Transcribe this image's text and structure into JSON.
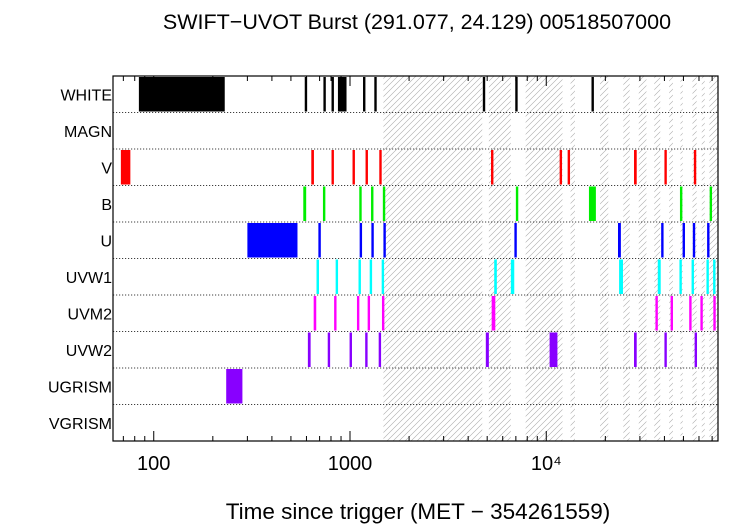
{
  "chart_data": {
    "type": "timeline",
    "title": "SWIFT−UVOT Burst (291.077, 24.129) 00518507000",
    "xlabel": "Time since trigger (MET − 354261559)",
    "xscale": "log",
    "xlim": [
      62,
      75000
    ],
    "x_tick_labels": [
      "100",
      "1000",
      "10⁴"
    ],
    "x_ticks": [
      100,
      1000,
      10000
    ],
    "rows": [
      "WHITE",
      "MAGN",
      "V",
      "B",
      "U",
      "UVW1",
      "UVM2",
      "UVW2",
      "UGRISM",
      "VGRISM"
    ],
    "colors": {
      "WHITE": "#000000",
      "MAGN": "#000000",
      "V": "#ff0000",
      "B": "#00ee00",
      "U": "#0000ff",
      "UVW1": "#00ffff",
      "UVM2": "#ff00ff",
      "UVW2": "#8800ff",
      "UGRISM": "#8800ff",
      "VGRISM": "#000000"
    },
    "hatched_intervals": [
      [
        1480,
        4720
      ],
      [
        5100,
        6600
      ],
      [
        7850,
        12100
      ],
      [
        13300,
        14000
      ],
      [
        18800,
        20700
      ],
      [
        24700,
        26600
      ],
      [
        29600,
        32400
      ],
      [
        35500,
        38100
      ],
      [
        42300,
        44200
      ],
      [
        48300,
        49600
      ],
      [
        55600,
        58400
      ],
      [
        62000,
        64200
      ],
      [
        67800,
        75000
      ]
    ],
    "exposures": {
      "WHITE": [
        [
          84,
          230
        ],
        [
          588,
          600
        ],
        [
          732,
          752
        ],
        [
          805,
          820
        ],
        [
          868,
          960
        ],
        [
          1165,
          1185
        ],
        [
          1330,
          1345
        ],
        [
          4750,
          4840
        ],
        [
          6950,
          7000
        ],
        [
          17000,
          17400
        ]
      ],
      "MAGN": [],
      "V": [
        [
          68,
          76
        ],
        [
          635,
          655
        ],
        [
          805,
          825
        ],
        [
          1030,
          1050
        ],
        [
          1200,
          1220
        ],
        [
          1410,
          1430
        ],
        [
          5230,
          5370
        ],
        [
          11700,
          11900
        ],
        [
          12850,
          13050
        ],
        [
          28000,
          28900
        ],
        [
          40000,
          41000
        ],
        [
          56500,
          57800
        ]
      ],
      "B": [
        [
          578,
          598
        ],
        [
          728,
          748
        ],
        [
          1115,
          1135
        ],
        [
          1280,
          1300
        ],
        [
          1470,
          1490
        ],
        [
          7000,
          7200
        ],
        [
          16500,
          17900
        ],
        [
          48000,
          49000
        ],
        [
          68000,
          69200
        ]
      ],
      "U": [
        [
          300,
          540
        ],
        [
          690,
          710
        ],
        [
          1120,
          1140
        ],
        [
          1285,
          1305
        ],
        [
          1480,
          1500
        ],
        [
          6880,
          7050
        ],
        [
          23200,
          24000
        ],
        [
          38500,
          39200
        ],
        [
          49500,
          50500
        ],
        [
          55800,
          57000
        ],
        [
          66000,
          67800
        ]
      ],
      "UVW1": [
        [
          675,
          695
        ],
        [
          845,
          865
        ],
        [
          1105,
          1125
        ],
        [
          1260,
          1280
        ],
        [
          1450,
          1470
        ],
        [
          5430,
          5600
        ],
        [
          6600,
          6870
        ],
        [
          23500,
          24600
        ],
        [
          37000,
          38300
        ],
        [
          47700,
          49000
        ],
        [
          55000,
          56200
        ],
        [
          65500,
          67000
        ],
        [
          70800,
          72000
        ]
      ],
      "UVM2": [
        [
          653,
          673
        ],
        [
          830,
          850
        ],
        [
          1085,
          1105
        ],
        [
          1230,
          1250
        ],
        [
          1455,
          1475
        ],
        [
          5270,
          5500
        ],
        [
          36000,
          37000
        ],
        [
          43000,
          44000
        ],
        [
          53500,
          54800
        ],
        [
          61000,
          62500
        ],
        [
          71000,
          72600
        ]
      ],
      "UVW2": [
        [
          610,
          630
        ],
        [
          770,
          790
        ],
        [
          995,
          1015
        ],
        [
          1195,
          1215
        ],
        [
          1400,
          1420
        ],
        [
          4920,
          5100
        ],
        [
          10400,
          11400
        ],
        [
          28000,
          28900
        ],
        [
          40000,
          41000
        ],
        [
          57000,
          58000
        ]
      ],
      "UGRISM": [
        [
          234,
          283
        ]
      ],
      "VGRISM": []
    }
  }
}
